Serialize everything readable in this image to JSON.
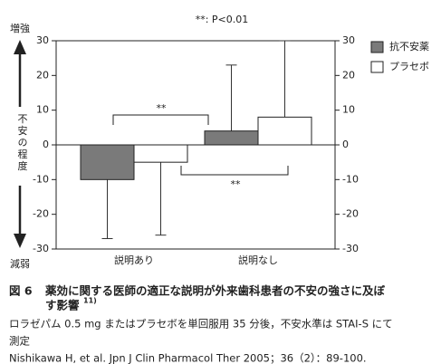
{
  "chart_data": {
    "type": "bar",
    "annotation": "**: P<0.01",
    "y_top_label": "増強",
    "y_bottom_label": "減弱",
    "y_label": "不安の程度",
    "categories": [
      "説明あり",
      "説明なし"
    ],
    "series": [
      {
        "name": "抗不安薬",
        "color": "#7a7a7a",
        "values": [
          -10,
          4
        ],
        "errors": [
          17,
          19
        ]
      },
      {
        "name": "プラセボ",
        "color": "#ffffff",
        "values": [
          -5,
          8
        ],
        "errors": [
          21,
          22
        ]
      }
    ],
    "significance": [
      "**",
      "**"
    ],
    "ylim": [
      -30,
      30
    ],
    "yticks": [
      -30,
      -20,
      -10,
      0,
      10,
      20,
      30
    ],
    "right_axis": true
  },
  "caption": {
    "figure": "図 6",
    "title_lines": [
      "薬効に関する医師の適正な説明が外来歯科患者の不安の強さに及ぼ",
      "す影響"
    ],
    "ref": "11)",
    "note_lines": [
      "ロラゼパム 0.5 mg またはプラセボを単回服用 35 分後，不安水準は STAI-S にて",
      "測定"
    ],
    "citation": "Nishikawa H, et al. Jpn J Clin Pharmacol Ther 2005；36（2）：89-100."
  }
}
